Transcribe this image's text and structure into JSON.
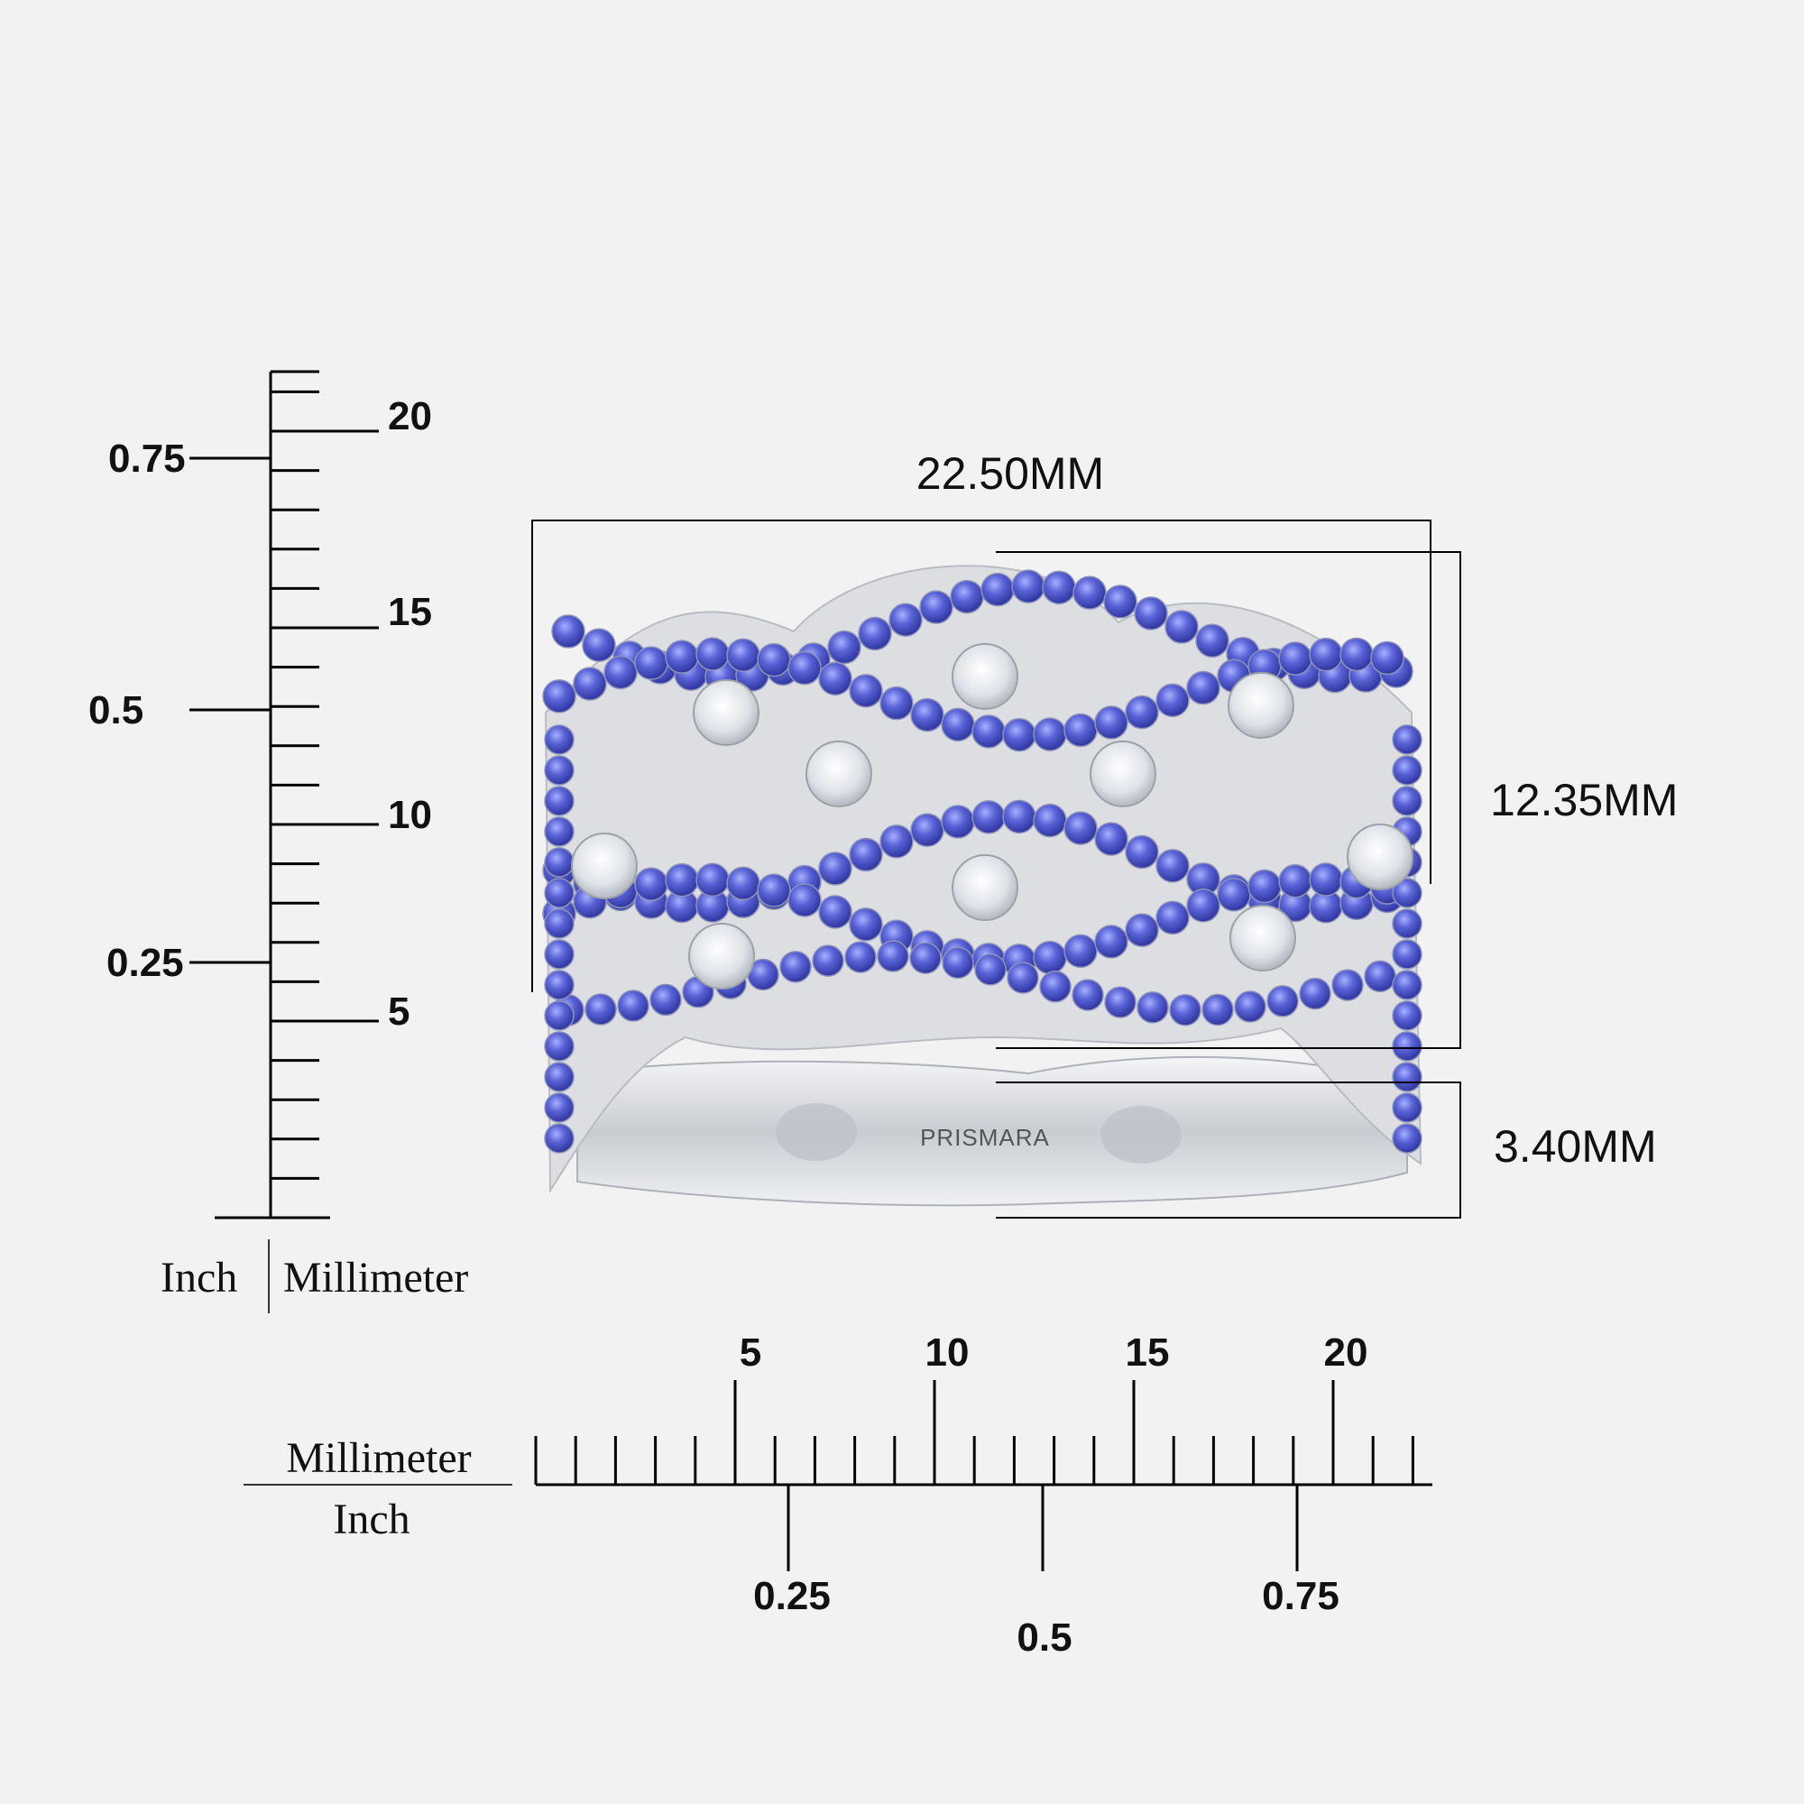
{
  "dimensions": {
    "width_label": "22.50MM",
    "height_label": "12.35MM",
    "band_label": "3.40MM"
  },
  "engraving": "PRISMARA",
  "vertical_ruler": {
    "mm_ticks": [
      "20",
      "15",
      "10",
      "5"
    ],
    "inch_ticks": [
      "0.75",
      "0.5",
      "0.25"
    ],
    "unit_inch": "Inch",
    "unit_mm": "Millimeter"
  },
  "horizontal_ruler": {
    "mm_ticks": [
      "5",
      "10",
      "15",
      "20"
    ],
    "inch_ticks": [
      "0.25",
      "0.5",
      "0.75"
    ],
    "unit_mm": "Millimeter",
    "unit_inch": "Inch"
  },
  "colors": {
    "background": "#f2f2f2",
    "sapphire": "#4a55c8",
    "diamond": "#e4e6ea",
    "metal": "#d6d8dc"
  }
}
